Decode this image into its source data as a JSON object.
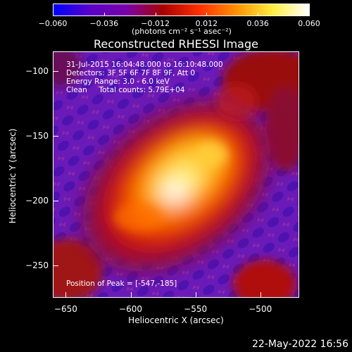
{
  "colorbar": {
    "tick_labels": [
      "−0.060",
      "−0.036",
      "−0.012",
      "0.012",
      "0.036",
      "0.060"
    ],
    "tick_values": [
      -0.06,
      -0.036,
      -0.012,
      0.012,
      0.036,
      0.06
    ],
    "units_label": "(photons cm⁻² s⁻¹ asec⁻²)",
    "colors": [
      "#0000ff",
      "#5a00c8",
      "#7a00aa",
      "#a80000",
      "#ff3000",
      "#ff9000",
      "#ffee40",
      "#ffffff"
    ]
  },
  "title": "Reconstructed RHESSI Image",
  "info_lines": [
    "31-Jul-2015 16:04:48.000 to 16:10:48.000",
    "Detectors: 3F 5F 6F 7F 8F 9F, Att 0",
    "Energy Range: 3.0 - 6.0 keV",
    "Clean     Total counts: 5.79E+04"
  ],
  "peak_text": "Position of Peak = [-547,-185]",
  "x_axis": {
    "label": "Heliocentric X (arcsec)",
    "tick_labels": [
      "−650",
      "−600",
      "−550",
      "−500"
    ],
    "tick_values": [
      -650,
      -600,
      -550,
      -500
    ],
    "range": [
      -660,
      -470
    ]
  },
  "y_axis": {
    "label": "Heliocentric Y (arcsec)",
    "tick_labels": [
      "−100",
      "−150",
      "−200",
      "−250"
    ],
    "tick_values": [
      -100,
      -150,
      -200,
      -250
    ],
    "range": [
      -275,
      -85
    ]
  },
  "peak_position": [
    -547,
    -185
  ],
  "date": "22-May-2022 16:56"
}
